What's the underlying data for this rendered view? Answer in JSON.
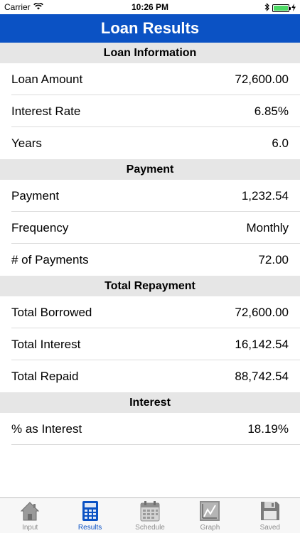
{
  "status_bar": {
    "carrier": "Carrier",
    "time": "10:26 PM"
  },
  "nav": {
    "title": "Loan Results"
  },
  "sections": [
    {
      "header": "Loan Information",
      "rows": [
        {
          "label": "Loan Amount",
          "value": "72,600.00"
        },
        {
          "label": "Interest Rate",
          "value": "6.85%"
        },
        {
          "label": "Years",
          "value": "6.0"
        }
      ]
    },
    {
      "header": "Payment",
      "rows": [
        {
          "label": "Payment",
          "value": "1,232.54"
        },
        {
          "label": "Frequency",
          "value": "Monthly"
        },
        {
          "label": "# of Payments",
          "value": "72.00"
        }
      ]
    },
    {
      "header": "Total Repayment",
      "rows": [
        {
          "label": "Total Borrowed",
          "value": "72,600.00"
        },
        {
          "label": "Total Interest",
          "value": "16,142.54"
        },
        {
          "label": "Total Repaid",
          "value": "88,742.54"
        }
      ]
    },
    {
      "header": "Interest",
      "rows": [
        {
          "label": "% as Interest",
          "value": "18.19%"
        }
      ]
    }
  ],
  "tabs": [
    {
      "label": "Input",
      "icon": "house-icon"
    },
    {
      "label": "Results",
      "icon": "calculator-icon",
      "active": true
    },
    {
      "label": "Schedule",
      "icon": "calendar-icon"
    },
    {
      "label": "Graph",
      "icon": "graph-icon"
    },
    {
      "label": "Saved",
      "icon": "floppy-disk-icon"
    }
  ],
  "colors": {
    "accent": "#0b52c4",
    "section_bg": "#e6e6e6",
    "tab_inactive": "#8e8e8e"
  }
}
